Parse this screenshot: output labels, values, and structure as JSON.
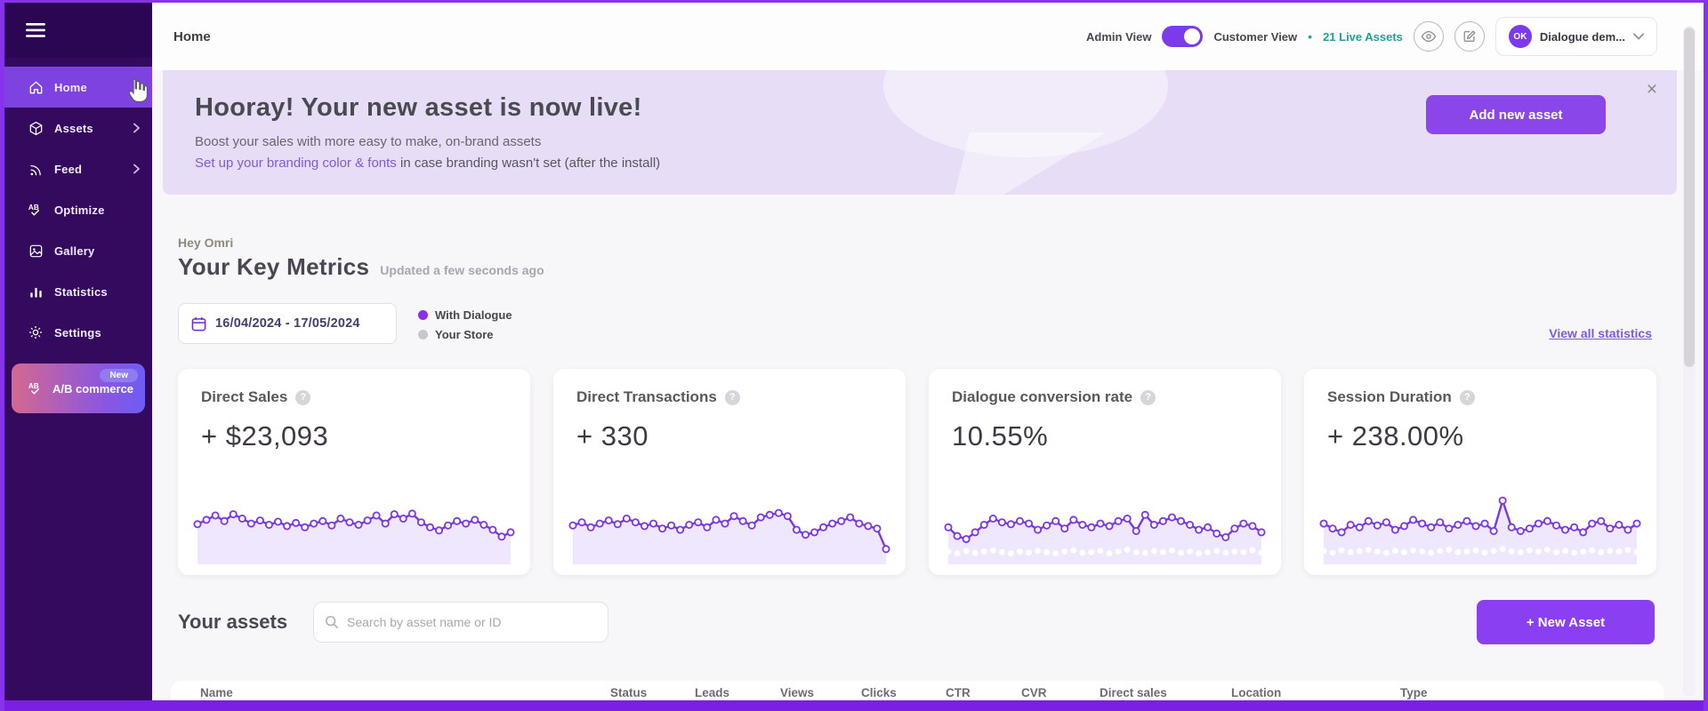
{
  "colors": {
    "accent_purple": "#7c3aed",
    "sidebar_bg": "#340a5f",
    "active_item_bg": "#7d42e0",
    "banner_bg": "#e7ddf6",
    "teal_live_assets": "#1ba393",
    "link_purple": "#7e5bd8",
    "button_purple": "#8a46e8",
    "legend_store_gray": "#c9c6cf",
    "frame_border": "#8633eb"
  },
  "sidebar": {
    "items": [
      {
        "label": "Home",
        "active": true,
        "has_submenu": false
      },
      {
        "label": "Assets",
        "active": false,
        "has_submenu": true
      },
      {
        "label": "Feed",
        "active": false,
        "has_submenu": true
      },
      {
        "label": "Optimize",
        "active": false,
        "has_submenu": false
      },
      {
        "label": "Gallery",
        "active": false,
        "has_submenu": false
      },
      {
        "label": "Statistics",
        "active": false,
        "has_submenu": false
      },
      {
        "label": "Settings",
        "active": false,
        "has_submenu": false
      }
    ],
    "ab_item": {
      "label": "A/B commerce",
      "badge": "New"
    }
  },
  "header": {
    "title": "Home",
    "admin_view": "Admin View",
    "customer_view": "Customer View",
    "separator": "•",
    "live_assets": "21 Live Assets",
    "account_initials": "OK",
    "account_name": "Dialogue dem..."
  },
  "banner": {
    "title": "Hooray! Your new asset is now live!",
    "subtitle": "Boost your sales with more easy to make, on-brand assets",
    "link_text": "Set up your branding color & fonts",
    "link_suffix": " in case branding wasn't set (after the install)",
    "button": "Add new asset",
    "close_icon": "×"
  },
  "metrics": {
    "greeting": "Hey Omri",
    "title": "Your Key Metrics",
    "updated": "Updated a few seconds ago",
    "date_range": "16/04/2024 - 17/05/2024",
    "legend": [
      {
        "label": "With Dialogue",
        "color": "#8b2fe8"
      },
      {
        "label": "Your Store",
        "color": "#c9c6cf"
      }
    ],
    "view_all": "View all statistics",
    "help_icon": "?"
  },
  "cards": [
    {
      "title": "Direct Sales",
      "value": "+ $23,093"
    },
    {
      "title": "Direct Transactions",
      "value": "+ 330"
    },
    {
      "title": "Dialogue conversion rate",
      "value": "10.55%"
    },
    {
      "title": "Session Duration",
      "value": "+ 238.00%"
    }
  ],
  "chart_data": [
    {
      "type": "line",
      "title": "Direct Sales sparkline",
      "x_range": "16/04/2024 - 17/05/2024",
      "ylim": [
        0,
        100
      ],
      "grid": false,
      "legend_position": "hidden",
      "series": [
        {
          "name": "With Dialogue",
          "values": [
            56,
            63,
            70,
            61,
            72,
            65,
            57,
            62,
            55,
            60,
            53,
            58,
            51,
            57,
            61,
            54,
            65,
            59,
            55,
            62,
            70,
            57,
            72,
            65,
            73,
            59,
            51,
            46,
            54,
            61,
            57,
            63,
            55,
            47,
            36,
            43
          ]
        }
      ]
    },
    {
      "type": "line",
      "title": "Direct Transactions sparkline",
      "x_range": "16/04/2024 - 17/05/2024",
      "ylim": [
        0,
        100
      ],
      "grid": false,
      "legend_position": "hidden",
      "series": [
        {
          "name": "With Dialogue",
          "values": [
            54,
            59,
            51,
            57,
            62,
            56,
            65,
            59,
            53,
            57,
            49,
            54,
            47,
            55,
            59,
            51,
            63,
            57,
            69,
            61,
            54,
            67,
            71,
            74,
            69,
            47,
            39,
            43,
            51,
            57,
            61,
            67,
            57,
            53,
            49,
            16
          ]
        }
      ]
    },
    {
      "type": "line",
      "title": "Dialogue conversion rate sparkline",
      "x_range": "16/04/2024 - 17/05/2024",
      "ylim": [
        0,
        100
      ],
      "grid": false,
      "legend_position": "hidden",
      "series": [
        {
          "name": "With Dialogue",
          "values": [
            51,
            37,
            32,
            43,
            55,
            65,
            59,
            56,
            61,
            57,
            47,
            54,
            61,
            49,
            63,
            55,
            51,
            57,
            53,
            61,
            65,
            45,
            71,
            55,
            61,
            67,
            61,
            55,
            47,
            51,
            41,
            35,
            49,
            57,
            53,
            43
          ]
        },
        {
          "name": "Your Store",
          "values": [
            12,
            9,
            13,
            10,
            12,
            14,
            11,
            9,
            12,
            10,
            13,
            11,
            9,
            12,
            14,
            10,
            11,
            13,
            9,
            12,
            15,
            11,
            10,
            13,
            11,
            14,
            10,
            12,
            9,
            11,
            13,
            10,
            12,
            11,
            14,
            10
          ]
        }
      ]
    },
    {
      "type": "line",
      "title": "Session Duration sparkline",
      "x_range": "16/04/2024 - 17/05/2024",
      "ylim": [
        0,
        100
      ],
      "grid": false,
      "legend_position": "hidden",
      "series": [
        {
          "name": "With Dialogue",
          "values": [
            57,
            49,
            43,
            55,
            51,
            61,
            54,
            59,
            47,
            53,
            63,
            57,
            51,
            59,
            49,
            55,
            61,
            53,
            57,
            45,
            94,
            51,
            45,
            49,
            57,
            61,
            54,
            47,
            51,
            43,
            57,
            61,
            49,
            55,
            47,
            57
          ]
        },
        {
          "name": "Your Store",
          "values": [
            13,
            10,
            14,
            11,
            13,
            15,
            12,
            10,
            13,
            11,
            14,
            12,
            10,
            13,
            15,
            11,
            12,
            14,
            10,
            13,
            16,
            12,
            11,
            14,
            12,
            15,
            11,
            13,
            10,
            12,
            14,
            11,
            13,
            12,
            15,
            11
          ]
        }
      ]
    }
  ],
  "assets_section": {
    "title": "Your assets",
    "search_placeholder": "Search by asset name or ID",
    "new_asset_button": "+ New Asset",
    "table_headers": [
      "Name",
      "Status",
      "Leads",
      "Views",
      "Clicks",
      "CTR",
      "CVR",
      "Direct sales",
      "Location",
      "Type"
    ]
  }
}
